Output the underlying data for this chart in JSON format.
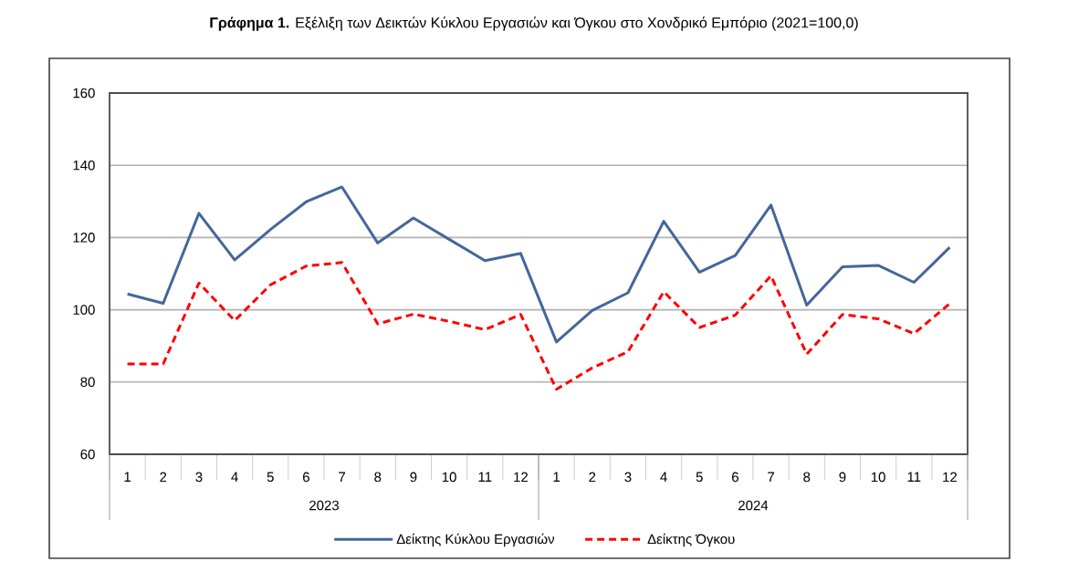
{
  "chart_data": {
    "type": "line",
    "title": "**Γράφημα 1.** Εξέλιξη των Δεικτών Κύκλου Εργασιών και Όγκου στο Χονδρικό Εμπόριο (2021=100,0)",
    "categories": [
      "1",
      "2",
      "3",
      "4",
      "5",
      "6",
      "7",
      "8",
      "9",
      "10",
      "11",
      "12",
      "1",
      "2",
      "3",
      "4",
      "5",
      "6",
      "7",
      "8",
      "9",
      "10",
      "11",
      "12"
    ],
    "annotations": [
      "2023",
      "2024"
    ],
    "series": [
      {
        "name": "Δείκτης Κύκλου Εργασιών",
        "color": "#44679a",
        "line_style": "solid",
        "values": [
          104.4,
          101.8,
          126.7,
          113.8,
          122.2,
          129.9,
          134.0,
          118.5,
          125.4,
          119.5,
          113.6,
          115.6,
          91.1,
          99.8,
          104.7,
          124.5,
          110.4,
          115.0,
          129.0,
          101.3,
          111.9,
          112.3,
          107.6,
          117.3
        ]
      },
      {
        "name": "Δείκτης Όγκου",
        "color": "#ff0000",
        "line_style": "dashed",
        "values": [
          85.0,
          85.0,
          107.4,
          97.0,
          106.9,
          112.1,
          113.1,
          96.1,
          98.8,
          96.8,
          94.5,
          98.7,
          78.0,
          83.9,
          88.4,
          105.0,
          95.1,
          98.5,
          109.4,
          87.7,
          98.7,
          97.5,
          93.4,
          101.7
        ]
      }
    ],
    "ylim": [
      60,
      160
    ],
    "yticks": [
      60,
      80,
      100,
      120,
      140,
      160
    ],
    "grid": "y",
    "legend": "bottom",
    "marker": "none"
  }
}
